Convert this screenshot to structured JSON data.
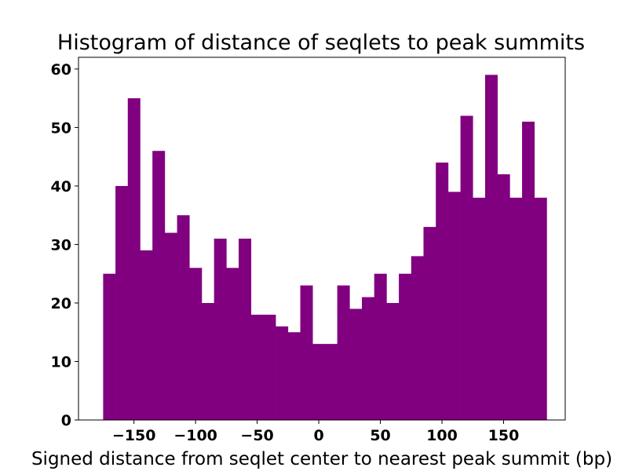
{
  "chart_data": {
    "type": "bar",
    "title": "Histogram of distance of seqlets to peak summits",
    "xlabel": "Signed distance from seqlet center to nearest peak summit (bp)",
    "ylabel": "",
    "bins": [
      {
        "x0": -175,
        "x1": -165,
        "value": 25
      },
      {
        "x0": -165,
        "x1": -155,
        "value": 40
      },
      {
        "x0": -155,
        "x1": -145,
        "value": 55
      },
      {
        "x0": -145,
        "x1": -135,
        "value": 29
      },
      {
        "x0": -135,
        "x1": -125,
        "value": 46
      },
      {
        "x0": -125,
        "x1": -115,
        "value": 32
      },
      {
        "x0": -115,
        "x1": -105,
        "value": 35
      },
      {
        "x0": -105,
        "x1": -95,
        "value": 26
      },
      {
        "x0": -95,
        "x1": -85,
        "value": 20
      },
      {
        "x0": -85,
        "x1": -75,
        "value": 31
      },
      {
        "x0": -75,
        "x1": -65,
        "value": 26
      },
      {
        "x0": -65,
        "x1": -55,
        "value": 31
      },
      {
        "x0": -55,
        "x1": -45,
        "value": 18
      },
      {
        "x0": -45,
        "x1": -35,
        "value": 18
      },
      {
        "x0": -35,
        "x1": -25,
        "value": 16
      },
      {
        "x0": -25,
        "x1": -15,
        "value": 15
      },
      {
        "x0": -15,
        "x1": -5,
        "value": 23
      },
      {
        "x0": -5,
        "x1": 5,
        "value": 13
      },
      {
        "x0": 5,
        "x1": 15,
        "value": 13
      },
      {
        "x0": 15,
        "x1": 25,
        "value": 23
      },
      {
        "x0": 25,
        "x1": 35,
        "value": 19
      },
      {
        "x0": 35,
        "x1": 45,
        "value": 21
      },
      {
        "x0": 45,
        "x1": 55,
        "value": 25
      },
      {
        "x0": 55,
        "x1": 65,
        "value": 20
      },
      {
        "x0": 65,
        "x1": 75,
        "value": 25
      },
      {
        "x0": 75,
        "x1": 85,
        "value": 28
      },
      {
        "x0": 85,
        "x1": 95,
        "value": 33
      },
      {
        "x0": 95,
        "x1": 105,
        "value": 44
      },
      {
        "x0": 105,
        "x1": 115,
        "value": 39
      },
      {
        "x0": 115,
        "x1": 125,
        "value": 52
      },
      {
        "x0": 125,
        "x1": 135,
        "value": 38
      },
      {
        "x0": 135,
        "x1": 145,
        "value": 59
      },
      {
        "x0": 145,
        "x1": 155,
        "value": 42
      },
      {
        "x0": 155,
        "x1": 165,
        "value": 38
      },
      {
        "x0": 165,
        "x1": 175,
        "value": 51
      },
      {
        "x0": 175,
        "x1": 185,
        "value": 38
      }
    ],
    "xlim": [
      -195,
      200
    ],
    "ylim": [
      0,
      62
    ],
    "xticks": [
      -150,
      -100,
      -50,
      0,
      50,
      100,
      150
    ],
    "xtick_labels": [
      "−150",
      "−100",
      "−50",
      "0",
      "50",
      "100",
      "150"
    ],
    "yticks": [
      0,
      10,
      20,
      30,
      40,
      50,
      60
    ],
    "ytick_labels": [
      "0",
      "10",
      "20",
      "30",
      "40",
      "50",
      "60"
    ],
    "bar_color": "#800080",
    "grid": false,
    "legend": "none"
  }
}
